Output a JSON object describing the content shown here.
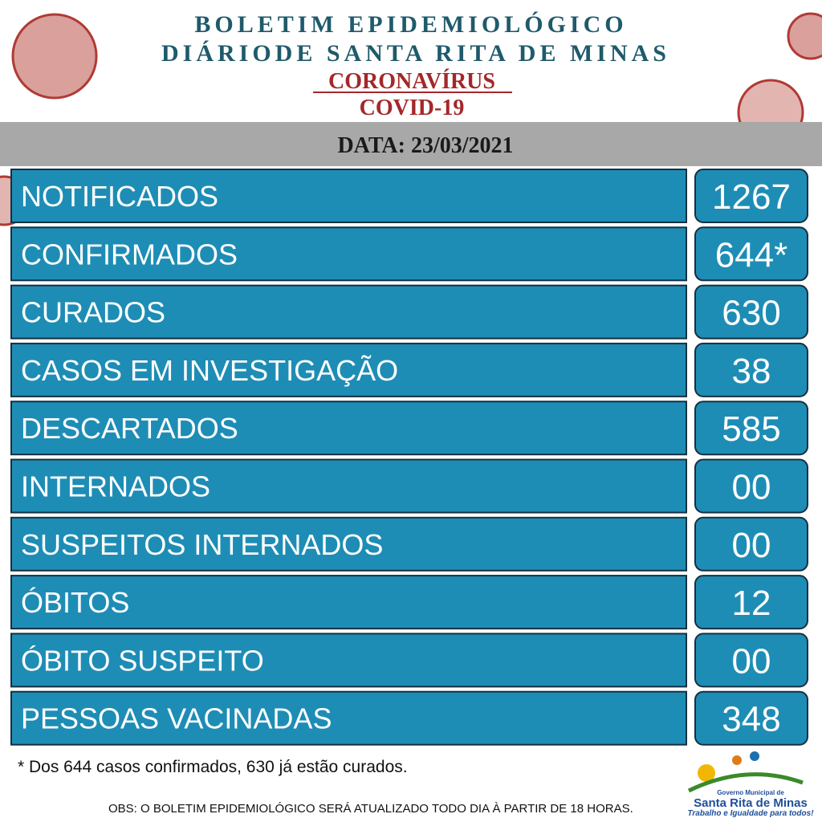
{
  "header": {
    "title_line1": "BOLETIM EPIDEMIOLÓGICO",
    "title_line2": "DIÁRIODE SANTA RITA DE MINAS",
    "subtitle1": "CORONAVÍRUS",
    "subtitle2": "COVID-19"
  },
  "date": "DATA: 23/03/2021",
  "rows": [
    {
      "label": "NOTIFICADOS",
      "value": "1267"
    },
    {
      "label": "CONFIRMADOS",
      "value": "644*"
    },
    {
      "label": "CURADOS",
      "value": "630"
    },
    {
      "label": "CASOS EM INVESTIGAÇÃO",
      "value": "38"
    },
    {
      "label": "DESCARTADOS",
      "value": "585"
    },
    {
      "label": "INTERNADOS",
      "value": "00"
    },
    {
      "label": "SUSPEITOS INTERNADOS",
      "value": "00"
    },
    {
      "label": "ÓBITOS",
      "value": "12"
    },
    {
      "label": "ÓBITO SUSPEITO",
      "value": "00"
    },
    {
      "label": "PESSOAS VACINADAS",
      "value": "348"
    }
  ],
  "footnote": "* Dos 644 casos confirmados, 630 já estão curados.",
  "obs": "OBS: O BOLETIM EPIDEMIOLÓGICO SERÁ ATUALIZADO TODO DIA À PARTIR DE 18 HORAS.",
  "logo": {
    "line1": "Governo Municipal de",
    "line2": "Santa Rita de Minas",
    "line3": "Trabalho e Igualdade para todos!"
  }
}
